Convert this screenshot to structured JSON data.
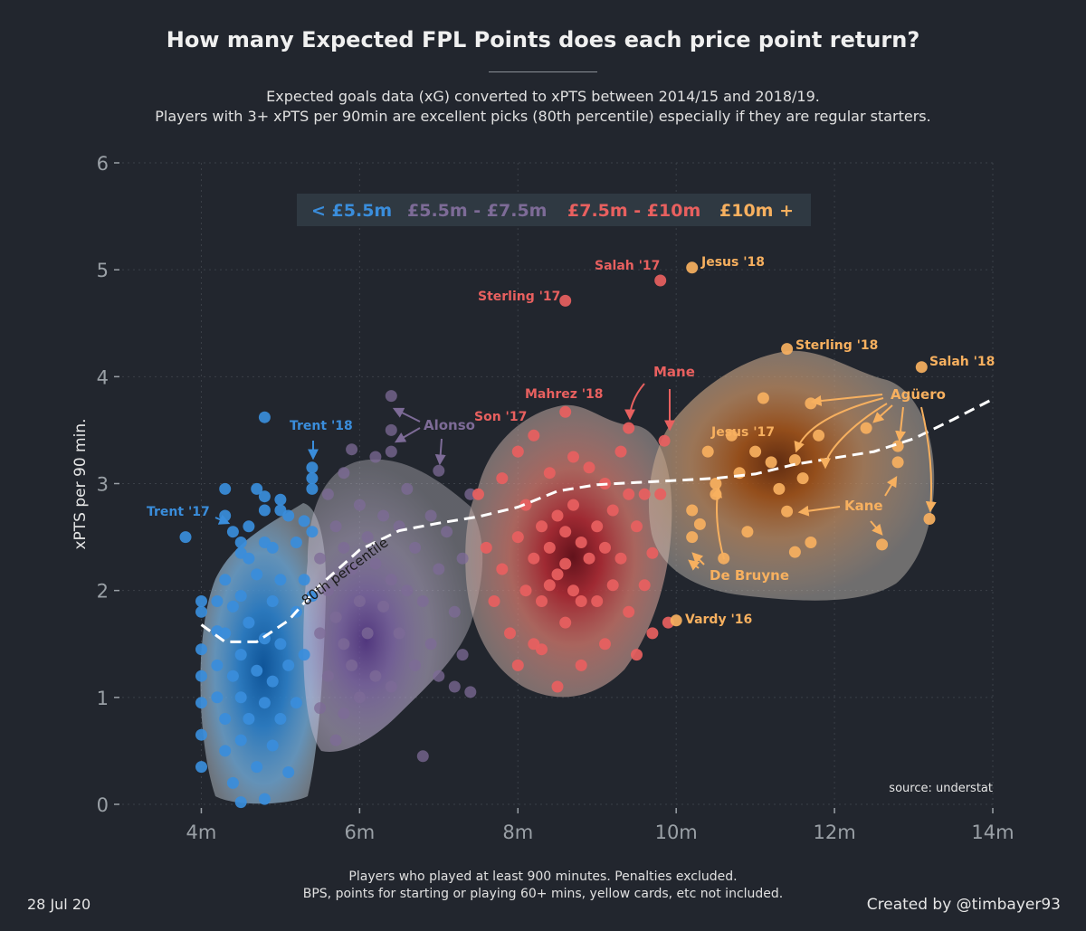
{
  "title": "How many Expected FPL Points does each price point return?",
  "subtitle_line1": "Expected goals data (xG) converted to xPTS between 2014/15 and 2018/19.",
  "subtitle_line2": "Players with 3+ xPTS per 90min are excellent picks (80th percentile) especially if they are regular starters.",
  "footnote_line1": "Players who played at least 900 minutes. Penalties excluded.",
  "footnote_line2": "BPS, points for starting or playing 60+ mins, yellow cards, etc not included.",
  "date": "28 Jul 20",
  "credit": "Created by @timbayer93",
  "colors": {
    "background": "#22262e",
    "blue": "#3a8ddb",
    "purple": "#7d6b97",
    "red": "#e8605f",
    "orange": "#f7b05f"
  },
  "chart_data": {
    "type": "scatter",
    "ylabel": "xPTS per 90 min.",
    "xlabel": "",
    "xlim": [
      3,
      14
    ],
    "ylim": [
      0,
      6
    ],
    "xticks": [
      4,
      6,
      8,
      10,
      12,
      14
    ],
    "xtick_labels": [
      "4m",
      "6m",
      "8m",
      "10m",
      "12m",
      "14m"
    ],
    "yticks": [
      0,
      1,
      2,
      3,
      4,
      5,
      6
    ],
    "ytick_labels": [
      "0",
      "1",
      "2",
      "3",
      "4",
      "5",
      "6"
    ],
    "grid": true,
    "source": "source: understat",
    "legend": [
      {
        "label": "< £5.5m",
        "color": "#3a8ddb"
      },
      {
        "label": "£5.5m - £7.5m",
        "color": "#7d6b97"
      },
      {
        "label": "£7.5m - £10m",
        "color": "#e8605f"
      },
      {
        "label": "£10m +",
        "color": "#f7b05f"
      }
    ],
    "percentile_label": "80th percentile",
    "percentile_curve": [
      [
        4.0,
        1.68
      ],
      [
        4.3,
        1.52
      ],
      [
        4.7,
        1.52
      ],
      [
        5.1,
        1.72
      ],
      [
        5.5,
        2.05
      ],
      [
        6.0,
        2.38
      ],
      [
        6.5,
        2.56
      ],
      [
        7.0,
        2.63
      ],
      [
        7.5,
        2.69
      ],
      [
        8.0,
        2.78
      ],
      [
        8.5,
        2.93
      ],
      [
        9.0,
        2.99
      ],
      [
        9.5,
        3.01
      ],
      [
        10.0,
        3.03
      ],
      [
        10.5,
        3.05
      ],
      [
        11.0,
        3.09
      ],
      [
        11.5,
        3.18
      ],
      [
        12.0,
        3.24
      ],
      [
        12.5,
        3.3
      ],
      [
        13.0,
        3.42
      ],
      [
        13.5,
        3.6
      ],
      [
        14.0,
        3.79
      ]
    ],
    "density_regions": [
      {
        "name": "under-5.5m",
        "color": "#3a8ddb",
        "peak": [
          4.4,
          0.9
        ]
      },
      {
        "name": "5.5m-7.5m",
        "color": "#7d6b97",
        "peak": [
          5.8,
          1.5
        ]
      },
      {
        "name": "7.5m-10m",
        "color": "#e8605f",
        "peak": [
          8.6,
          2.2
        ]
      },
      {
        "name": "10m-plus",
        "color": "#f7b05f",
        "peak": [
          10.9,
          2.95
        ]
      }
    ],
    "series": [
      {
        "name": "< £5.5m",
        "color": "#3a8ddb",
        "points": [
          [
            3.8,
            2.5
          ],
          [
            4.0,
            1.9
          ],
          [
            4.0,
            1.8
          ],
          [
            4.0,
            1.45
          ],
          [
            4.0,
            1.2
          ],
          [
            4.0,
            0.95
          ],
          [
            4.0,
            0.65
          ],
          [
            4.0,
            0.35
          ],
          [
            4.2,
            1.62
          ],
          [
            4.2,
            1.9
          ],
          [
            4.2,
            1.3
          ],
          [
            4.2,
            1.0
          ],
          [
            4.3,
            2.95
          ],
          [
            4.3,
            2.7
          ],
          [
            4.3,
            2.1
          ],
          [
            4.3,
            1.6
          ],
          [
            4.3,
            0.8
          ],
          [
            4.3,
            0.5
          ],
          [
            4.4,
            2.55
          ],
          [
            4.4,
            1.85
          ],
          [
            4.4,
            1.2
          ],
          [
            4.4,
            0.2
          ],
          [
            4.5,
            2.45
          ],
          [
            4.5,
            2.35
          ],
          [
            4.5,
            1.95
          ],
          [
            4.5,
            1.4
          ],
          [
            4.5,
            1.0
          ],
          [
            4.5,
            0.6
          ],
          [
            4.5,
            0.02
          ],
          [
            4.6,
            2.3
          ],
          [
            4.6,
            2.6
          ],
          [
            4.6,
            1.7
          ],
          [
            4.6,
            0.8
          ],
          [
            4.7,
            2.95
          ],
          [
            4.7,
            2.15
          ],
          [
            4.7,
            1.25
          ],
          [
            4.7,
            0.35
          ],
          [
            4.8,
            2.75
          ],
          [
            4.8,
            1.55
          ],
          [
            4.8,
            0.95
          ],
          [
            4.8,
            2.45
          ],
          [
            4.8,
            3.62
          ],
          [
            4.8,
            2.88
          ],
          [
            4.8,
            0.05
          ],
          [
            4.9,
            2.4
          ],
          [
            4.9,
            1.9
          ],
          [
            4.9,
            1.15
          ],
          [
            4.9,
            0.55
          ],
          [
            5.0,
            2.85
          ],
          [
            5.0,
            2.1
          ],
          [
            5.0,
            1.5
          ],
          [
            5.0,
            0.8
          ],
          [
            5.0,
            2.75
          ],
          [
            5.1,
            2.7
          ],
          [
            5.1,
            1.3
          ],
          [
            5.1,
            0.3
          ],
          [
            5.2,
            2.45
          ],
          [
            5.2,
            1.8
          ],
          [
            5.2,
            0.95
          ],
          [
            5.3,
            2.65
          ],
          [
            5.3,
            2.1
          ],
          [
            5.3,
            1.4
          ],
          [
            5.4,
            3.15
          ],
          [
            5.4,
            3.05
          ],
          [
            5.4,
            2.95
          ],
          [
            5.4,
            2.55
          ],
          [
            5.4,
            1.95
          ]
        ]
      },
      {
        "name": "£5.5m - £7.5m",
        "color": "#7d6b97",
        "points": [
          [
            5.5,
            2.3
          ],
          [
            5.5,
            1.6
          ],
          [
            5.5,
            0.9
          ],
          [
            5.6,
            2.9
          ],
          [
            5.6,
            2.0
          ],
          [
            5.6,
            1.2
          ],
          [
            5.7,
            2.6
          ],
          [
            5.7,
            1.75
          ],
          [
            5.7,
            0.6
          ],
          [
            5.8,
            3.1
          ],
          [
            5.8,
            2.4
          ],
          [
            5.8,
            1.5
          ],
          [
            5.8,
            0.85
          ],
          [
            5.9,
            3.32
          ],
          [
            5.9,
            2.2
          ],
          [
            5.9,
            1.3
          ],
          [
            6.0,
            2.8
          ],
          [
            6.0,
            1.9
          ],
          [
            6.0,
            1.0
          ],
          [
            6.1,
            2.5
          ],
          [
            6.1,
            1.6
          ],
          [
            6.2,
            3.25
          ],
          [
            6.2,
            2.25
          ],
          [
            6.2,
            1.2
          ],
          [
            6.3,
            2.7
          ],
          [
            6.3,
            1.85
          ],
          [
            6.4,
            3.82
          ],
          [
            6.4,
            3.5
          ],
          [
            6.4,
            3.3
          ],
          [
            6.4,
            2.1
          ],
          [
            6.4,
            1.1
          ],
          [
            6.5,
            2.6
          ],
          [
            6.5,
            1.6
          ],
          [
            6.6,
            2.95
          ],
          [
            6.6,
            2.0
          ],
          [
            6.7,
            2.4
          ],
          [
            6.7,
            1.3
          ],
          [
            6.8,
            0.45
          ],
          [
            6.8,
            1.9
          ],
          [
            6.9,
            2.7
          ],
          [
            6.9,
            1.5
          ],
          [
            7.0,
            3.12
          ],
          [
            7.0,
            2.2
          ],
          [
            7.0,
            1.2
          ],
          [
            7.1,
            2.55
          ],
          [
            7.2,
            1.8
          ],
          [
            7.2,
            1.1
          ],
          [
            7.3,
            2.3
          ],
          [
            7.3,
            1.4
          ],
          [
            7.4,
            1.05
          ],
          [
            7.4,
            2.9
          ]
        ]
      },
      {
        "name": "£7.5m - £10m",
        "color": "#e8605f",
        "points": [
          [
            7.5,
            2.9
          ],
          [
            7.6,
            2.4
          ],
          [
            7.7,
            1.9
          ],
          [
            7.8,
            3.05
          ],
          [
            7.8,
            2.2
          ],
          [
            7.9,
            1.6
          ],
          [
            8.0,
            3.3
          ],
          [
            8.0,
            2.5
          ],
          [
            8.0,
            1.3
          ],
          [
            8.1,
            2.8
          ],
          [
            8.1,
            2.0
          ],
          [
            8.2,
            3.45
          ],
          [
            8.2,
            2.3
          ],
          [
            8.2,
            1.5
          ],
          [
            8.3,
            2.6
          ],
          [
            8.3,
            1.9
          ],
          [
            8.3,
            1.45
          ],
          [
            8.4,
            3.1
          ],
          [
            8.4,
            2.4
          ],
          [
            8.4,
            2.05
          ],
          [
            8.5,
            2.7
          ],
          [
            8.5,
            2.15
          ],
          [
            8.5,
            1.1
          ],
          [
            8.6,
            3.67
          ],
          [
            8.6,
            2.55
          ],
          [
            8.6,
            2.25
          ],
          [
            8.6,
            1.7
          ],
          [
            8.7,
            2.8
          ],
          [
            8.7,
            2.0
          ],
          [
            8.7,
            3.25
          ],
          [
            8.8,
            2.45
          ],
          [
            8.8,
            1.9
          ],
          [
            8.8,
            1.3
          ],
          [
            8.9,
            3.15
          ],
          [
            8.9,
            2.3
          ],
          [
            9.0,
            2.6
          ],
          [
            9.0,
            1.9
          ],
          [
            9.1,
            3.0
          ],
          [
            9.1,
            2.4
          ],
          [
            9.1,
            1.5
          ],
          [
            9.2,
            2.75
          ],
          [
            9.2,
            2.05
          ],
          [
            9.3,
            3.3
          ],
          [
            9.3,
            2.3
          ],
          [
            9.4,
            3.52
          ],
          [
            9.4,
            2.9
          ],
          [
            9.4,
            1.8
          ],
          [
            9.5,
            2.6
          ],
          [
            9.5,
            1.4
          ],
          [
            9.6,
            2.9
          ],
          [
            9.6,
            2.05
          ],
          [
            9.7,
            2.35
          ],
          [
            9.7,
            1.6
          ],
          [
            9.8,
            2.9
          ],
          [
            9.85,
            3.4
          ],
          [
            9.9,
            1.7
          ],
          [
            8.6,
            4.71
          ],
          [
            9.8,
            4.9
          ]
        ]
      },
      {
        "name": "£10m +",
        "color": "#f7b05f",
        "points": [
          [
            10.0,
            1.72
          ],
          [
            10.2,
            2.75
          ],
          [
            10.2,
            2.5
          ],
          [
            10.3,
            2.62
          ],
          [
            10.4,
            3.3
          ],
          [
            10.5,
            2.9
          ],
          [
            10.5,
            3.0
          ],
          [
            10.6,
            2.3
          ],
          [
            10.7,
            3.45
          ],
          [
            10.8,
            3.1
          ],
          [
            10.9,
            2.55
          ],
          [
            11.0,
            3.3
          ],
          [
            11.1,
            3.8
          ],
          [
            11.2,
            3.2
          ],
          [
            11.3,
            2.95
          ],
          [
            11.4,
            2.74
          ],
          [
            11.5,
            3.22
          ],
          [
            11.5,
            2.36
          ],
          [
            11.6,
            3.05
          ],
          [
            11.7,
            3.75
          ],
          [
            11.7,
            2.45
          ],
          [
            11.8,
            3.45
          ],
          [
            12.4,
            3.52
          ],
          [
            12.6,
            2.43
          ],
          [
            12.8,
            3.35
          ],
          [
            12.8,
            3.2
          ],
          [
            11.4,
            4.26
          ],
          [
            10.2,
            5.02
          ],
          [
            13.1,
            4.09
          ],
          [
            13.2,
            2.67
          ]
        ]
      }
    ],
    "annotations": [
      {
        "label": "Trent '17",
        "color": "#3a8ddb"
      },
      {
        "label": "Trent '18",
        "color": "#3a8ddb"
      },
      {
        "label": "Alonso",
        "color": "#7d6b97"
      },
      {
        "label": "Son '17",
        "color": "#e8605f"
      },
      {
        "label": "Mahrez '18",
        "color": "#e8605f"
      },
      {
        "label": "Mane",
        "color": "#e8605f"
      },
      {
        "label": "Salah '17",
        "color": "#e8605f"
      },
      {
        "label": "Sterling '17",
        "color": "#e8605f"
      },
      {
        "label": "Jesus '18",
        "color": "#f7b05f"
      },
      {
        "label": "Sterling '18",
        "color": "#f7b05f"
      },
      {
        "label": "Salah '18",
        "color": "#f7b05f"
      },
      {
        "label": "Agüero",
        "color": "#f7b05f"
      },
      {
        "label": "Jesus '17",
        "color": "#f7b05f"
      },
      {
        "label": "Kane",
        "color": "#f7b05f"
      },
      {
        "label": "De Bruyne",
        "color": "#f7b05f"
      },
      {
        "label": "Vardy '16",
        "color": "#f7b05f"
      }
    ]
  }
}
